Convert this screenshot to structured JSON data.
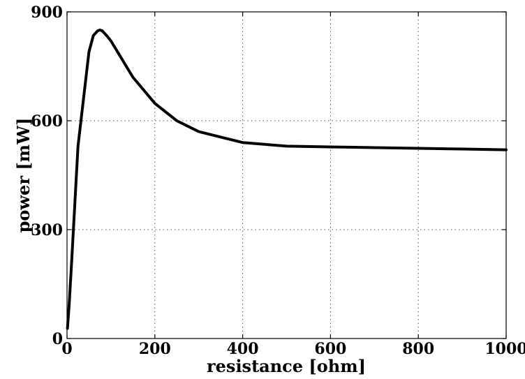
{
  "chart_data": {
    "type": "line",
    "title": "",
    "xlabel": "resistance [ohm]",
    "ylabel": "power [mW]",
    "xlim": [
      0,
      1000
    ],
    "ylim": [
      0,
      900
    ],
    "x_ticks": [
      "0",
      "200",
      "400",
      "600",
      "800",
      "1000"
    ],
    "y_ticks": [
      "0",
      "300",
      "600",
      "900"
    ],
    "grid": true,
    "legend": "none",
    "line_color": "#000000",
    "grid_color": "#555555",
    "series": [
      {
        "x": [
          1,
          5,
          10,
          25,
          50,
          60,
          70,
          75,
          80,
          90,
          100,
          150,
          200,
          250,
          300,
          350,
          400,
          450,
          500,
          600,
          700,
          800,
          900,
          1000
        ],
        "y": [
          28,
          95,
          200,
          530,
          790,
          835,
          848,
          850,
          848,
          835,
          820,
          720,
          648,
          600,
          570,
          555,
          540,
          535,
          530,
          528,
          526,
          524,
          522,
          520
        ]
      }
    ]
  }
}
